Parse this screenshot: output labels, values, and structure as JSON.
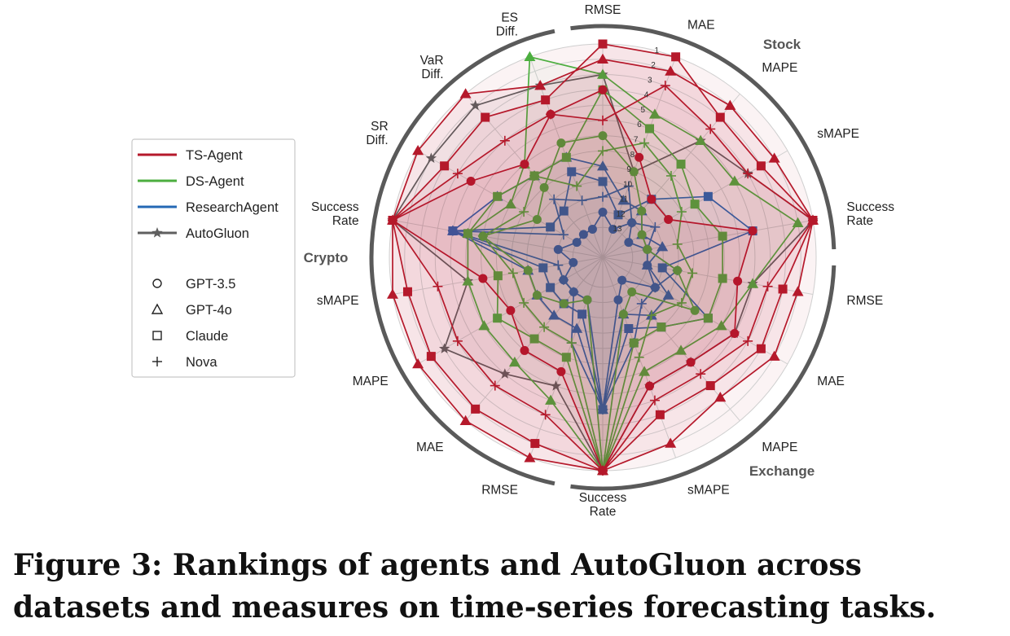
{
  "caption": "Figure 3: Rankings of agents and AutoGluon across datasets and measures on time-series forecasting tasks.",
  "colors": {
    "TS-Agent": "#b5192b",
    "DS-Agent": "#4cae3f",
    "ResearchAgent": "#2468b4",
    "AutoGluon": "#5f5f5f",
    "ring": "#5a5a5a",
    "grid": "#cfcfcf"
  },
  "chart_data": {
    "type": "radar",
    "title": "",
    "axes": [
      {
        "label": "RMSE",
        "group": "Stock"
      },
      {
        "label": "MAE",
        "group": "Stock"
      },
      {
        "label": "MAPE",
        "group": "Stock"
      },
      {
        "label": "sMAPE",
        "group": "Stock"
      },
      {
        "label": "Success Rate",
        "group": "Stock"
      },
      {
        "label": "RMSE",
        "group": "Exchange"
      },
      {
        "label": "MAE",
        "group": "Exchange"
      },
      {
        "label": "MAPE",
        "group": "Exchange"
      },
      {
        "label": "sMAPE",
        "group": "Exchange"
      },
      {
        "label": "Success Rate",
        "group": "Exchange"
      },
      {
        "label": "RMSE",
        "group": "Crypto"
      },
      {
        "label": "MAE",
        "group": "Crypto"
      },
      {
        "label": "MAPE",
        "group": "Crypto"
      },
      {
        "label": "sMAPE",
        "group": "Crypto"
      },
      {
        "label": "Success Rate",
        "group": "Crypto"
      },
      {
        "label": "SR Diff.",
        "group": "Crypto"
      },
      {
        "label": "VaR Diff.",
        "group": "Crypto"
      },
      {
        "label": "ES Diff.",
        "group": "Crypto"
      }
    ],
    "groups": [
      {
        "label": "Stock",
        "start_axis": 0,
        "end_axis": 4
      },
      {
        "label": "Exchange",
        "start_axis": 5,
        "end_axis": 9
      },
      {
        "label": "Crypto",
        "start_axis": 10,
        "end_axis": 17
      }
    ],
    "rank_ticks": [
      "1",
      "2",
      "3",
      "4",
      "5",
      "6",
      "7",
      "8",
      "9",
      "10",
      "11",
      "12",
      "13"
    ],
    "rank_range": [
      1,
      14
    ],
    "rank_order": "rank 1 at outer edge",
    "legend": {
      "agents": [
        "TS-Agent",
        "DS-Agent",
        "ResearchAgent",
        "AutoGluon"
      ],
      "models": [
        {
          "label": "GPT-3.5",
          "marker": "circle"
        },
        {
          "label": "GPT-4o",
          "marker": "triangle"
        },
        {
          "label": "Claude",
          "marker": "square"
        },
        {
          "label": "Nova",
          "marker": "plus"
        }
      ],
      "placement": "left"
    },
    "series": [
      {
        "agent": "TS-Agent",
        "model": "GPT-3.5",
        "values": [
          4,
          8,
          10,
          10,
          5,
          6,
          5,
          6,
          6,
          1,
          7,
          7,
          8,
          7,
          1,
          5,
          7,
          5
        ]
      },
      {
        "agent": "TS-Agent",
        "model": "GPT-4o",
        "values": [
          2,
          2,
          2,
          2,
          1,
          2,
          2,
          3,
          2,
          1,
          1,
          1,
          1,
          1,
          1,
          1,
          1,
          3
        ]
      },
      {
        "agent": "TS-Agent",
        "model": "Claude",
        "values": [
          1,
          1,
          3,
          3,
          1,
          3,
          3,
          4,
          4,
          1,
          2,
          2,
          2,
          2,
          1,
          3,
          3,
          4
        ]
      },
      {
        "agent": "TS-Agent",
        "model": "Nova",
        "values": [
          6,
          3,
          4,
          4,
          1,
          4,
          4,
          5,
          5,
          1,
          4,
          4,
          4,
          4,
          1,
          4,
          5,
          5
        ]
      },
      {
        "agent": "DS-Agent",
        "model": "GPT-3.5",
        "values": [
          7,
          9,
          11,
          12,
          12,
          10,
          8,
          12,
          11,
          1,
          12,
          11,
          10,
          10,
          7,
          10,
          9,
          7
        ]
      },
      {
        "agent": "DS-Agent",
        "model": "GPT-4o",
        "values": [
          3,
          5,
          5,
          5,
          2,
          5,
          6,
          7,
          7,
          1,
          5,
          6,
          6,
          6,
          6,
          8,
          7,
          1
        ]
      },
      {
        "agent": "DS-Agent",
        "model": "Claude",
        "values": [
          4,
          6,
          7,
          8,
          7,
          7,
          7,
          9,
          9,
          1,
          8,
          8,
          7,
          8,
          6,
          7,
          8,
          8
        ]
      },
      {
        "agent": "DS-Agent",
        "model": "Nova",
        "values": [
          8,
          7,
          8,
          9,
          10,
          9,
          9,
          10,
          8,
          1,
          9,
          9,
          9,
          9,
          7,
          9,
          8,
          10
        ]
      },
      {
        "agent": "ResearchAgent",
        "model": "GPT-3.5",
        "values": [
          12,
          13,
          12,
          13,
          12,
          12,
          11,
          13,
          12,
          5,
          12,
          12,
          12,
          13,
          12,
          13,
          13,
          13
        ]
      },
      {
        "agent": "ResearchAgent",
        "model": "GPT-4o",
        "values": [
          9,
          11,
          11,
          12,
          11,
          12,
          10,
          10,
          11,
          5,
          10,
          10,
          10,
          10,
          5,
          7,
          8,
          8
        ]
      },
      {
        "agent": "ResearchAgent",
        "model": "Claude",
        "values": [
          10,
          12,
          10,
          7,
          5,
          11,
          7,
          9,
          10,
          5,
          11,
          11,
          11,
          11,
          5,
          11,
          11,
          9
        ]
      },
      {
        "agent": "ResearchAgent",
        "model": "Nova",
        "values": [
          11,
          10,
          12,
          11,
          12,
          10,
          11,
          11,
          9,
          5,
          9,
          12,
          12,
          12,
          5,
          12,
          10,
          11
        ]
      },
      {
        "agent": "AutoGluon",
        "model": "",
        "values": [
          3,
          9,
          5,
          4,
          1,
          5,
          5,
          6,
          6,
          1,
          6,
          5,
          3,
          6,
          1,
          2,
          2,
          3
        ]
      }
    ]
  }
}
